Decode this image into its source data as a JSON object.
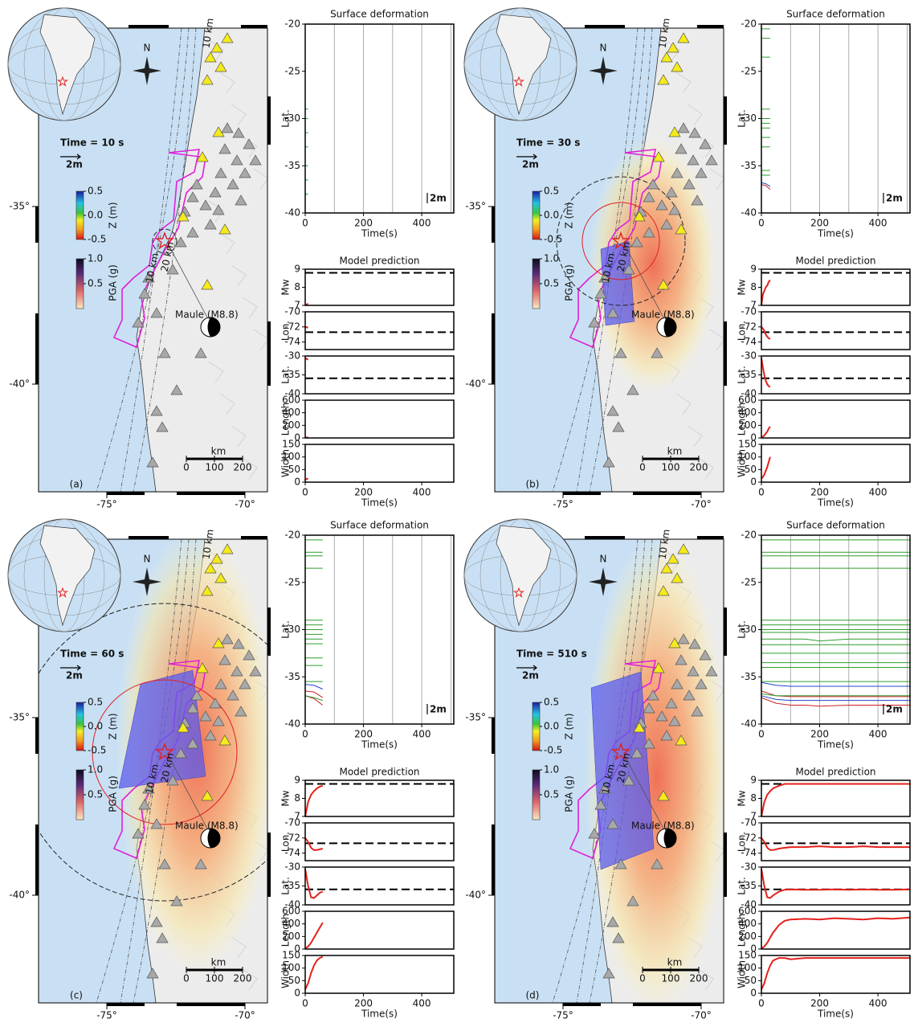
{
  "map_common": {
    "north": "N",
    "event": "Maule (M8.8)",
    "arrow_label": "2m",
    "km": "km",
    "km_ticks": [
      0,
      100,
      200
    ],
    "depth_labels": [
      "10 km",
      "20 km"
    ],
    "z_label": "Z (m)",
    "z_ticks": [
      {
        "value": 0.5,
        "label": "0.5"
      },
      {
        "value": 0,
        "label": "0.0"
      },
      {
        "value": -0.5,
        "label": "-0.5"
      }
    ],
    "pga_label": "PGA (g)",
    "pga_ticks": [
      {
        "value": 1,
        "label": "1.0"
      },
      {
        "value": 0.5,
        "label": "0.5"
      }
    ],
    "lat_ticks": [
      {
        "value": -35,
        "label": "-35°"
      },
      {
        "value": -40,
        "label": "-40°"
      }
    ],
    "lon_ticks": [
      {
        "value": -75,
        "label": "-75°"
      },
      {
        "value": -70,
        "label": "-70°"
      }
    ]
  },
  "surface_axes": {
    "title": "Surface deformation",
    "xlabel": "Time(s)",
    "ylabel": "Lat.",
    "xlim": [
      0,
      510
    ],
    "xticks": [
      0,
      200,
      400
    ],
    "xgrid": [
      100,
      200,
      300,
      400,
      500
    ],
    "ylim": [
      -40,
      -20
    ],
    "yticks": [
      -40,
      -35,
      -30,
      -25,
      -20
    ],
    "scale_label": "2m"
  },
  "model_axes": {
    "title": "Model prediction",
    "xlabel": "Time(s)",
    "xlim": [
      0,
      510
    ],
    "xticks": [
      0,
      200,
      400
    ],
    "subplots": [
      {
        "ylabel": "Mw",
        "ylim": [
          7,
          9
        ],
        "yticks": [
          7,
          8,
          9
        ],
        "reference": 8.8
      },
      {
        "ylabel": "Lon.",
        "ylim": [
          -75,
          -70
        ],
        "yticks": [
          -70,
          -72,
          -74
        ],
        "reference": -72.7
      },
      {
        "ylabel": "Lat.",
        "ylim": [
          -40,
          -30
        ],
        "yticks": [
          -30,
          -35,
          -40
        ],
        "reference": -35.9
      },
      {
        "ylabel": "Length",
        "ylim": [
          0,
          600
        ],
        "yticks": [
          0,
          200,
          400,
          600
        ]
      },
      {
        "ylabel": "Width",
        "ylim": [
          0,
          150
        ],
        "yticks": [
          0,
          50,
          100,
          150
        ]
      }
    ]
  },
  "chart_data": [
    {
      "type": "line",
      "label": "(a)",
      "time": "Time = 10 s",
      "surface": {
        "x": [
          0,
          10
        ],
        "series": [
          {
            "color": "#2e9e2e",
            "values": [
              -29,
              -29
            ]
          },
          {
            "color": "#2e9e2e",
            "values": [
              -30,
              -30
            ]
          },
          {
            "color": "#2e9e2e",
            "values": [
              -31.5,
              -31.5
            ]
          },
          {
            "color": "#2e9e2e",
            "values": [
              -33,
              -33
            ]
          },
          {
            "color": "#2e9e2e",
            "values": [
              -35,
              -35
            ]
          },
          {
            "color": "#2e9e2e",
            "values": [
              -36.5,
              -36.5
            ]
          },
          {
            "color": "#2e9e2e",
            "values": [
              -38,
              -38
            ]
          }
        ]
      },
      "model": {
        "x": [
          0,
          10
        ],
        "series": [
          {
            "color": "#e3201b",
            "values": [
              7.0,
              7.1
            ]
          },
          {
            "color": "#e3201b",
            "values": [
              -72.0,
              -72.1
            ]
          },
          {
            "color": "#e3201b",
            "values": [
              -30.5,
              -31
            ]
          },
          {
            "color": "#e3201b",
            "values": [
              5,
              10
            ]
          },
          {
            "color": "#e3201b",
            "values": [
              10,
              15
            ]
          }
        ]
      }
    },
    {
      "type": "line",
      "label": "(b)",
      "time": "Time = 30 s",
      "surface": {
        "x": [
          0,
          15,
          30
        ],
        "series": [
          {
            "color": "#2e9e2e",
            "values": [
              -20.5,
              -20.5,
              -20.5
            ]
          },
          {
            "color": "#2e9e2e",
            "values": [
              -21.5,
              -21.5,
              -21.5
            ]
          },
          {
            "color": "#2e9e2e",
            "values": [
              -23.5,
              -23.5,
              -23.5
            ]
          },
          {
            "color": "#2e9e2e",
            "values": [
              -29,
              -29,
              -29
            ]
          },
          {
            "color": "#2e9e2e",
            "values": [
              -30,
              -30,
              -30
            ]
          },
          {
            "color": "#2e9e2e",
            "values": [
              -30.5,
              -30.5,
              -30.5
            ]
          },
          {
            "color": "#2e9e2e",
            "values": [
              -31,
              -31,
              -31
            ]
          },
          {
            "color": "#2e9e2e",
            "values": [
              -32,
              -32,
              -32
            ]
          },
          {
            "color": "#2e9e2e",
            "values": [
              -33,
              -33,
              -33
            ]
          },
          {
            "color": "#2e9e2e",
            "values": [
              -35.5,
              -35.5,
              -35.5
            ]
          },
          {
            "color": "#2e9e2e",
            "values": [
              -36,
              -36,
              -36
            ]
          },
          {
            "color": "#cc2222",
            "values": [
              -37,
              -37.1,
              -37.5
            ]
          },
          {
            "color": "#2244cc",
            "values": [
              -36.8,
              -36.9,
              -37.2
            ]
          }
        ]
      },
      "model": {
        "x": [
          0,
          5,
          10,
          15,
          20,
          25,
          30
        ],
        "series": [
          {
            "color": "#e3201b",
            "values": [
              7.0,
              7.6,
              7.8,
              8.0,
              8.1,
              8.3,
              8.4
            ]
          },
          {
            "color": "#e3201b",
            "values": [
              -72.0,
              -72.2,
              -72.5,
              -73.0,
              -73.3,
              -73.5,
              -73.6
            ]
          },
          {
            "color": "#e3201b",
            "values": [
              -30.5,
              -33,
              -35,
              -36.5,
              -37.5,
              -38,
              -38.2
            ]
          },
          {
            "color": "#e3201b",
            "values": [
              10,
              20,
              40,
              70,
              100,
              150,
              180
            ]
          },
          {
            "color": "#e3201b",
            "values": [
              15,
              20,
              30,
              45,
              60,
              80,
              100
            ]
          }
        ]
      }
    },
    {
      "type": "line",
      "label": "(c)",
      "time": "Time = 60 s",
      "surface": {
        "x": [
          0,
          30,
          60
        ],
        "series": [
          {
            "color": "#2e9e2e",
            "values": [
              -20.5,
              -20.5,
              -20.5
            ]
          },
          {
            "color": "#2e9e2e",
            "values": [
              -21.8,
              -21.8,
              -21.8
            ]
          },
          {
            "color": "#2e9e2e",
            "values": [
              -22.2,
              -22.2,
              -22.2
            ]
          },
          {
            "color": "#2e9e2e",
            "values": [
              -23.5,
              -23.5,
              -23.5
            ]
          },
          {
            "color": "#2e9e2e",
            "values": [
              -29,
              -29,
              -29
            ]
          },
          {
            "color": "#2e9e2e",
            "values": [
              -29.5,
              -29.5,
              -29.5
            ]
          },
          {
            "color": "#2e9e2e",
            "values": [
              -30,
              -30,
              -30
            ]
          },
          {
            "color": "#2e9e2e",
            "values": [
              -30.5,
              -30.5,
              -30.5
            ]
          },
          {
            "color": "#2e9e2e",
            "values": [
              -31,
              -31,
              -31
            ]
          },
          {
            "color": "#2e9e2e",
            "values": [
              -31.5,
              -31.5,
              -31.5
            ]
          },
          {
            "color": "#2e9e2e",
            "values": [
              -33,
              -33,
              -33
            ]
          },
          {
            "color": "#2e9e2e",
            "values": [
              -33.8,
              -33.8,
              -33.8
            ]
          },
          {
            "color": "#2e9e2e",
            "values": [
              -35.5,
              -35.5,
              -35.5
            ]
          },
          {
            "color": "#cc2222",
            "values": [
              -36.5,
              -36.6,
              -37.2
            ]
          },
          {
            "color": "#cc2222",
            "values": [
              -37,
              -37.3,
              -38
            ]
          },
          {
            "color": "#2244cc",
            "values": [
              -35.8,
              -35.9,
              -36.3
            ]
          },
          {
            "color": "#2e9e2e",
            "values": [
              -37,
              -37.2,
              -37.5
            ]
          }
        ]
      },
      "model": {
        "x": [
          0,
          10,
          20,
          30,
          40,
          50,
          60
        ],
        "series": [
          {
            "color": "#e3201b",
            "values": [
              7.0,
              7.8,
              8.2,
              8.4,
              8.55,
              8.65,
              8.7
            ]
          },
          {
            "color": "#e3201b",
            "values": [
              -72.0,
              -72.5,
              -73.3,
              -73.6,
              -73.6,
              -73.5,
              -73.4
            ]
          },
          {
            "color": "#e3201b",
            "values": [
              -30.5,
              -35,
              -38,
              -38.2,
              -37.5,
              -36.8,
              -36.5
            ]
          },
          {
            "color": "#e3201b",
            "values": [
              10,
              40,
              100,
              180,
              260,
              340,
              420
            ]
          },
          {
            "color": "#e3201b",
            "values": [
              15,
              40,
              80,
              110,
              130,
              140,
              145
            ]
          }
        ]
      }
    },
    {
      "type": "line",
      "label": "(d)",
      "time": "Time = 510 s",
      "surface": {
        "x": [
          0,
          50,
          100,
          150,
          200,
          300,
          400,
          510
        ],
        "series": [
          {
            "color": "#2e9e2e",
            "values": [
              -20.5,
              -20.5,
              -20.5,
              -20.5,
              -20.5,
              -20.5,
              -20.5,
              -20.5
            ]
          },
          {
            "color": "#2e9e2e",
            "values": [
              -21.8,
              -21.8,
              -21.8,
              -21.8,
              -21.8,
              -21.8,
              -21.8,
              -21.8
            ]
          },
          {
            "color": "#2e9e2e",
            "values": [
              -22.2,
              -22.2,
              -22.2,
              -22.2,
              -22.2,
              -22.2,
              -22.2,
              -22.2
            ]
          },
          {
            "color": "#2e9e2e",
            "values": [
              -23.5,
              -23.5,
              -23.5,
              -23.5,
              -23.5,
              -23.5,
              -23.5,
              -23.5
            ]
          },
          {
            "color": "#2e9e2e",
            "values": [
              -29,
              -29,
              -29,
              -29,
              -29,
              -29,
              -29,
              -29
            ]
          },
          {
            "color": "#2e9e2e",
            "values": [
              -29.5,
              -29.5,
              -29.5,
              -29.5,
              -29.5,
              -29.5,
              -29.5,
              -29.5
            ]
          },
          {
            "color": "#2e9e2e",
            "values": [
              -30,
              -30,
              -30,
              -30,
              -30,
              -30,
              -30,
              -30
            ]
          },
          {
            "color": "#2e9e2e",
            "values": [
              -30.3,
              -30.3,
              -30.3,
              -30.3,
              -30.3,
              -30.3,
              -30.3,
              -30.3
            ]
          },
          {
            "color": "#2e9e2e",
            "values": [
              -31,
              -31,
              -31,
              -31,
              -31.2,
              -31,
              -31,
              -31
            ]
          },
          {
            "color": "#2e9e2e",
            "values": [
              -31.6,
              -31.6,
              -31.6,
              -31.6,
              -31.6,
              -31.6,
              -31.6,
              -31.6
            ]
          },
          {
            "color": "#2e9e2e",
            "values": [
              -32.5,
              -32.5,
              -32.5,
              -32.5,
              -32.5,
              -32.5,
              -32.5,
              -32.5
            ]
          },
          {
            "color": "#2e9e2e",
            "values": [
              -33.5,
              -33.5,
              -33.5,
              -33.5,
              -33.5,
              -33.5,
              -33.5,
              -33.5
            ]
          },
          {
            "color": "#2e9e2e",
            "values": [
              -34,
              -34,
              -34,
              -34,
              -34,
              -34,
              -34,
              -34
            ]
          },
          {
            "color": "#2e9e2e",
            "values": [
              -35.5,
              -35.5,
              -35.5,
              -35.5,
              -35.5,
              -35.5,
              -35.5,
              -35.5
            ]
          },
          {
            "color": "#2244cc",
            "values": [
              -35.6,
              -35.9,
              -36.0,
              -36.0,
              -36.0,
              -36.0,
              -36.0,
              -36.0
            ]
          },
          {
            "color": "#cc2222",
            "values": [
              -36.5,
              -37.0,
              -37.1,
              -37.1,
              -37.1,
              -37.1,
              -37.1,
              -37.1
            ]
          },
          {
            "color": "#2e9e2e",
            "values": [
              -36.8,
              -37.0,
              -37.0,
              -37.0,
              -37.0,
              -37.0,
              -37.0,
              -37.0
            ]
          },
          {
            "color": "#2244cc",
            "values": [
              -37.0,
              -37.4,
              -37.5,
              -37.5,
              -37.5,
              -37.5,
              -37.5,
              -37.5
            ]
          },
          {
            "color": "#cc2222",
            "values": [
              -37.2,
              -37.8,
              -38.0,
              -38.0,
              -38.1,
              -38.0,
              -38.0,
              -38.0
            ]
          }
        ]
      },
      "model": {
        "x": [
          0,
          10,
          20,
          30,
          40,
          60,
          80,
          100,
          150,
          200,
          250,
          300,
          350,
          400,
          450,
          510
        ],
        "series": [
          {
            "color": "#e3201b",
            "values": [
              7.0,
              7.8,
              8.2,
              8.4,
              8.55,
              8.7,
              8.8,
              8.8,
              8.8,
              8.8,
              8.8,
              8.8,
              8.8,
              8.8,
              8.8,
              8.8
            ]
          },
          {
            "color": "#e3201b",
            "values": [
              -72.0,
              -72.5,
              -73.3,
              -73.6,
              -73.6,
              -73.4,
              -73.3,
              -73.2,
              -73.2,
              -73.1,
              -73.2,
              -73.2,
              -73.1,
              -73.2,
              -73.2,
              -73.2
            ]
          },
          {
            "color": "#e3201b",
            "values": [
              -30.5,
              -35,
              -38,
              -38.2,
              -37.5,
              -36.5,
              -36.0,
              -35.9,
              -36.0,
              -36.0,
              -35.9,
              -36.0,
              -35.9,
              -36.0,
              -36.0,
              -35.9
            ]
          },
          {
            "color": "#e3201b",
            "values": [
              10,
              40,
              100,
              180,
              260,
              380,
              450,
              470,
              480,
              470,
              490,
              480,
              470,
              490,
              480,
              500
            ]
          },
          {
            "color": "#e3201b",
            "values": [
              15,
              40,
              80,
              110,
              130,
              140,
              140,
              135,
              140,
              140,
              140,
              140,
              140,
              140,
              140,
              140
            ]
          }
        ]
      }
    }
  ]
}
